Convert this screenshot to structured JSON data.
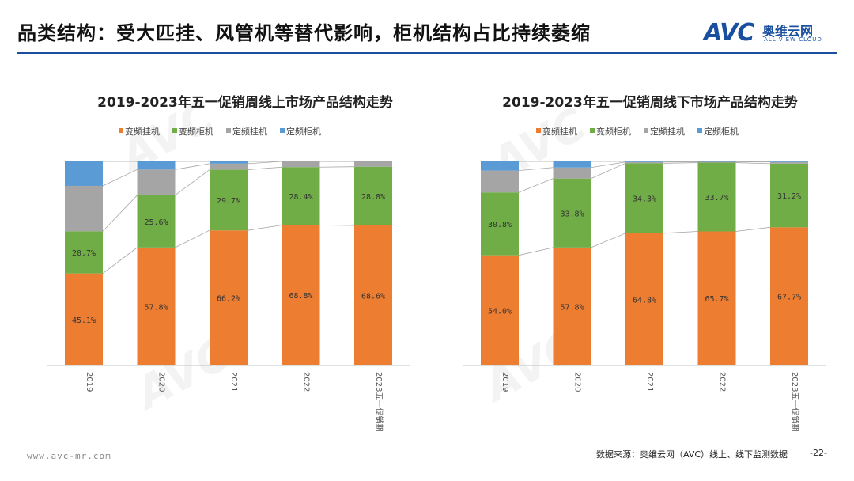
{
  "header": {
    "title": "品类结构：受大匹挂、风管机等替代影响，柜机结构占比持续萎缩",
    "logo_mark": "AVC",
    "logo_cn": "奥维云网",
    "logo_en": "ALL VIEW CLOUD"
  },
  "colors": {
    "变频挂机": "#ED7D31",
    "变频柜机": "#70AD47",
    "定频挂机": "#A5A5A5",
    "定频柜机": "#5B9BD5",
    "brand": "#1a4fa0"
  },
  "chart_data": [
    {
      "type": "bar",
      "stacked": true,
      "title": "2019-2023年五一促销周线上市场产品结构走势",
      "categories": [
        "2019",
        "2020",
        "2021",
        "2022",
        "2023五一促销期"
      ],
      "legend": [
        "变频挂机",
        "变频柜机",
        "定频挂机",
        "定频柜机"
      ],
      "legend_position": "top",
      "ylim": [
        0,
        100
      ],
      "series": [
        {
          "name": "变频挂机",
          "values": [
            45.1,
            57.8,
            66.2,
            68.8,
            68.6
          ]
        },
        {
          "name": "变频柜机",
          "values": [
            20.7,
            25.6,
            29.7,
            28.4,
            28.8
          ]
        },
        {
          "name": "定频挂机",
          "values": [
            22.2,
            12.6,
            3.0,
            2.8,
            2.6
          ]
        },
        {
          "name": "定频柜机",
          "values": [
            12.0,
            4.0,
            1.1,
            0,
            0
          ]
        }
      ],
      "labels_shown_for": [
        "变频挂机",
        "变频柜机"
      ],
      "labels": [
        [
          "45.1%",
          "57.8%",
          "66.2%",
          "68.8%",
          "68.6%"
        ],
        [
          "20.7%",
          "25.6%",
          "29.7%",
          "28.4%",
          "28.8%"
        ]
      ]
    },
    {
      "type": "bar",
      "stacked": true,
      "title": "2019-2023年五一促销周线下市场产品结构走势",
      "categories": [
        "2019",
        "2020",
        "2021",
        "2022",
        "2023五一促销期"
      ],
      "legend": [
        "变频挂机",
        "变频柜机",
        "定频挂机",
        "定频柜机"
      ],
      "legend_position": "top",
      "ylim": [
        0,
        100
      ],
      "series": [
        {
          "name": "变频挂机",
          "values": [
            54.0,
            57.8,
            64.8,
            65.7,
            67.7
          ]
        },
        {
          "name": "变频柜机",
          "values": [
            30.8,
            33.8,
            34.3,
            33.7,
            31.2
          ]
        },
        {
          "name": "定频挂机",
          "values": [
            10.7,
            5.4,
            0.6,
            0.4,
            0.8
          ]
        },
        {
          "name": "定频柜机",
          "values": [
            4.5,
            3.0,
            0.3,
            0.2,
            0.3
          ]
        }
      ],
      "labels_shown_for": [
        "变频挂机",
        "变频柜机"
      ],
      "labels": [
        [
          "54.0%",
          "57.8%",
          "64.8%",
          "65.7%",
          "67.7%"
        ],
        [
          "30.8%",
          "33.8%",
          "34.3%",
          "33.7%",
          "31.2%"
        ]
      ]
    }
  ],
  "footer": {
    "url": "www.avc-mr.com",
    "source": "数据来源：奥维云网（AVC）线上、线下监测数据",
    "page": "-22-"
  }
}
